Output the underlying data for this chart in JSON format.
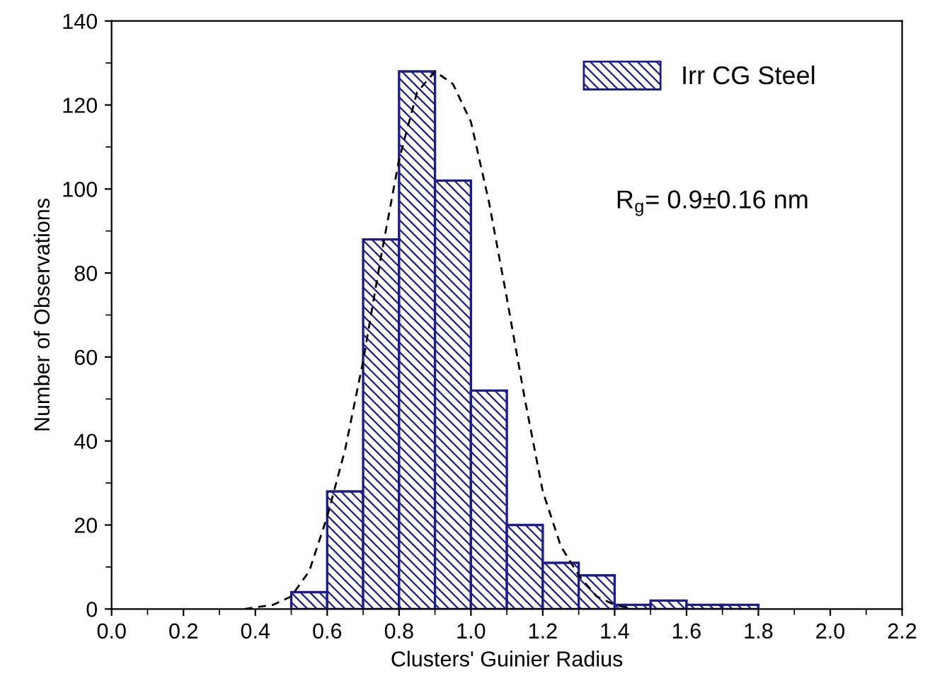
{
  "chart_data": {
    "type": "histogram",
    "xlabel": "Clusters' Guinier Radius",
    "ylabel": "Number of Observations",
    "xlim": [
      0.0,
      2.2
    ],
    "xticks": [
      {
        "value": 0.0,
        "label": "0.0"
      },
      0.2,
      0.4,
      0.6,
      0.8,
      {
        "value": 1.0,
        "label": "1.0"
      },
      1.2,
      1.4,
      1.6,
      1.8,
      {
        "value": 2.0,
        "label": "2.0"
      },
      2.2
    ],
    "ylim": [
      0,
      140
    ],
    "yticks": [
      0,
      20,
      40,
      60,
      80,
      100,
      120,
      140
    ],
    "legend": "top right",
    "grid": false,
    "annotations": [
      "R$_{g}$= 0.9±0.16 nm"
    ],
    "series": [
      {
        "name": "Irr CG Steel",
        "color": "#1c1c8c",
        "bins": [
          0.5,
          0.6,
          0.7,
          0.8,
          0.9,
          1.0,
          1.1,
          1.2,
          1.3,
          1.4,
          1.5,
          1.6,
          1.7,
          1.8
        ],
        "values": [
          4,
          28,
          88,
          128,
          102,
          52,
          20,
          11,
          8,
          1,
          2,
          1,
          1
        ]
      },
      {
        "type": "line",
        "color": "#000000",
        "line_style": "dashed",
        "x": [
          0.37,
          0.45,
          0.5,
          0.55,
          0.6,
          0.65,
          0.7,
          0.75,
          0.8,
          0.85,
          0.9,
          0.95,
          1.0,
          1.05,
          1.1,
          1.15,
          1.2,
          1.25,
          1.3,
          1.35,
          1.4,
          1.45
        ],
        "values": [
          0,
          1,
          3,
          9,
          22,
          38,
          59,
          84,
          107,
          123,
          128,
          125,
          116,
          97,
          74,
          50,
          28,
          15,
          8,
          3,
          1,
          0
        ]
      }
    ]
  }
}
